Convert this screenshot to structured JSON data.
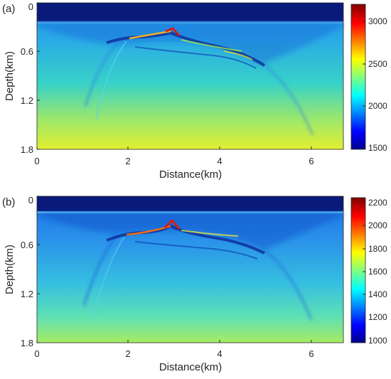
{
  "panels": [
    {
      "label": "(a)",
      "xlabel": "Distance(km)",
      "ylabel": "Depth(km)",
      "x_ticks": [
        "0",
        "2",
        "4",
        "6"
      ],
      "y_ticks": [
        "0",
        "0.6",
        "1.2",
        "1.8"
      ],
      "colorbar_ticks": [
        "3000",
        "2500",
        "2000",
        "1500"
      ]
    },
    {
      "label": "(b)",
      "xlabel": "Distance(km)",
      "ylabel": "Depth(km)",
      "x_ticks": [
        "0",
        "2",
        "4",
        "6"
      ],
      "y_ticks": [
        "0",
        "0.6",
        "1.2",
        "1.8"
      ],
      "colorbar_ticks": [
        "2200",
        "2000",
        "1800",
        "1600",
        "1400",
        "1200",
        "1000"
      ]
    }
  ],
  "colormap": "jet",
  "colors": {
    "water_layer": "#0a1a7a",
    "background_shallow": "#2a9ae8",
    "background_deep": "#d8ee3a",
    "reflector_high": "#d81c10"
  }
}
